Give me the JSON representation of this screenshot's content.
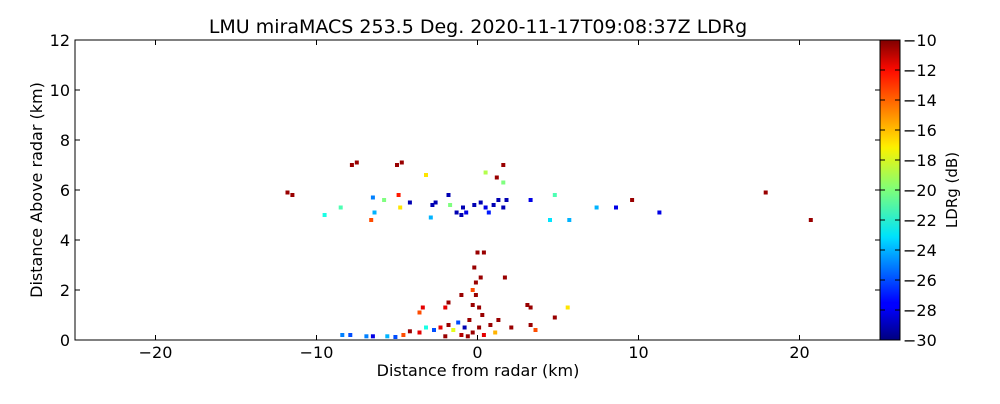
{
  "chart_data": {
    "type": "heatmap",
    "title": "LMU miraMACS 253.5 Deg. 2020-11-17T09:08:37Z  LDRg",
    "xlabel": "Distance from radar (km)",
    "ylabel": "Distance Above radar  (km)",
    "xlim": [
      -25,
      25
    ],
    "ylim": [
      0,
      12
    ],
    "x_ticks": [
      -20,
      -10,
      0,
      10,
      20
    ],
    "x_tick_labels": [
      "−20",
      "−10",
      "0",
      "10",
      "20"
    ],
    "y_ticks": [
      0,
      2,
      4,
      6,
      8,
      10,
      12
    ],
    "y_tick_labels": [
      "0",
      "2",
      "4",
      "6",
      "8",
      "10",
      "12"
    ],
    "colorbar": {
      "label": "LDRg (dB)",
      "colormap": "jet",
      "range": [
        -30,
        -10
      ],
      "ticks": [
        -30,
        -28,
        -26,
        -24,
        -22,
        -20,
        -18,
        -16,
        -14,
        -12,
        -10
      ],
      "tick_labels": [
        "−30",
        "−28",
        "−26",
        "−24",
        "−22",
        "−20",
        "−18",
        "−16",
        "−14",
        "−12",
        "−10"
      ]
    },
    "grid": false,
    "features": [
      {
        "x": -11.8,
        "y": 5.9,
        "v": -10.5
      },
      {
        "x": -11.5,
        "y": 5.8,
        "v": -10.5
      },
      {
        "x": -9.5,
        "y": 5.0,
        "v": -22
      },
      {
        "x": -8.5,
        "y": 5.3,
        "v": -21
      },
      {
        "x": -7.8,
        "y": 7.0,
        "v": -10.5
      },
      {
        "x": -7.5,
        "y": 7.1,
        "v": -10.5
      },
      {
        "x": -6.5,
        "y": 5.7,
        "v": -25
      },
      {
        "x": -6.4,
        "y": 5.1,
        "v": -24
      },
      {
        "x": -6.6,
        "y": 4.8,
        "v": -14
      },
      {
        "x": -5.8,
        "y": 5.6,
        "v": -20
      },
      {
        "x": -5.0,
        "y": 7.0,
        "v": -10.5
      },
      {
        "x": -4.7,
        "y": 7.1,
        "v": -10.5
      },
      {
        "x": -4.9,
        "y": 5.8,
        "v": -13
      },
      {
        "x": -4.8,
        "y": 5.3,
        "v": -17
      },
      {
        "x": -4.2,
        "y": 5.5,
        "v": -29
      },
      {
        "x": -3.2,
        "y": 6.6,
        "v": -17
      },
      {
        "x": -2.8,
        "y": 5.4,
        "v": -29
      },
      {
        "x": -2.6,
        "y": 5.5,
        "v": -29
      },
      {
        "x": -2.9,
        "y": 4.9,
        "v": -24
      },
      {
        "x": -1.8,
        "y": 5.8,
        "v": -29
      },
      {
        "x": -1.7,
        "y": 5.4,
        "v": -20
      },
      {
        "x": -1.3,
        "y": 5.1,
        "v": -29
      },
      {
        "x": -1.0,
        "y": 5.0,
        "v": -29
      },
      {
        "x": -0.7,
        "y": 5.1,
        "v": -28
      },
      {
        "x": -0.9,
        "y": 5.3,
        "v": -29
      },
      {
        "x": -0.2,
        "y": 5.4,
        "v": -29
      },
      {
        "x": 0.2,
        "y": 5.5,
        "v": -29
      },
      {
        "x": 0.5,
        "y": 5.3,
        "v": -28
      },
      {
        "x": 1.0,
        "y": 5.4,
        "v": -29
      },
      {
        "x": 1.3,
        "y": 5.6,
        "v": -29
      },
      {
        "x": 1.8,
        "y": 5.6,
        "v": -29
      },
      {
        "x": 1.6,
        "y": 5.3,
        "v": -29
      },
      {
        "x": 0.7,
        "y": 5.1,
        "v": -27
      },
      {
        "x": 0.5,
        "y": 6.7,
        "v": -19
      },
      {
        "x": 1.2,
        "y": 6.5,
        "v": -10.5
      },
      {
        "x": 1.6,
        "y": 7.0,
        "v": -10.5
      },
      {
        "x": 1.6,
        "y": 6.3,
        "v": -20
      },
      {
        "x": 3.3,
        "y": 5.6,
        "v": -28
      },
      {
        "x": 4.5,
        "y": 4.8,
        "v": -23
      },
      {
        "x": 4.8,
        "y": 5.8,
        "v": -21
      },
      {
        "x": 5.7,
        "y": 4.8,
        "v": -24
      },
      {
        "x": 7.4,
        "y": 5.3,
        "v": -24
      },
      {
        "x": 8.6,
        "y": 5.3,
        "v": -28
      },
      {
        "x": 9.6,
        "y": 5.6,
        "v": -10.5
      },
      {
        "x": 11.3,
        "y": 5.1,
        "v": -28
      },
      {
        "x": 17.9,
        "y": 5.9,
        "v": -10.5
      },
      {
        "x": 20.7,
        "y": 4.8,
        "v": -10.5
      },
      {
        "x": 0.0,
        "y": 3.5,
        "v": -10.5
      },
      {
        "x": 0.4,
        "y": 3.5,
        "v": -10.5
      },
      {
        "x": -0.2,
        "y": 2.9,
        "v": -10.5
      },
      {
        "x": -0.1,
        "y": 2.3,
        "v": -10.5
      },
      {
        "x": 0.2,
        "y": 2.5,
        "v": -10.5
      },
      {
        "x": 1.7,
        "y": 2.5,
        "v": -10.5
      },
      {
        "x": -0.3,
        "y": 2.0,
        "v": -14
      },
      {
        "x": -0.1,
        "y": 1.8,
        "v": -10.5
      },
      {
        "x": -1.0,
        "y": 1.8,
        "v": -10.5
      },
      {
        "x": -1.8,
        "y": 1.5,
        "v": -10.5
      },
      {
        "x": -2.0,
        "y": 1.3,
        "v": -12
      },
      {
        "x": -3.4,
        "y": 1.3,
        "v": -12
      },
      {
        "x": -3.6,
        "y": 1.1,
        "v": -14
      },
      {
        "x": -0.3,
        "y": 1.4,
        "v": -10.5
      },
      {
        "x": 0.1,
        "y": 1.3,
        "v": -10.5
      },
      {
        "x": 0.3,
        "y": 1.0,
        "v": -10.5
      },
      {
        "x": 1.3,
        "y": 0.8,
        "v": -10.5
      },
      {
        "x": 3.1,
        "y": 1.4,
        "v": -10.5
      },
      {
        "x": 3.3,
        "y": 1.3,
        "v": -10.5
      },
      {
        "x": 5.6,
        "y": 1.3,
        "v": -17
      },
      {
        "x": 3.3,
        "y": 0.6,
        "v": -10.5
      },
      {
        "x": 4.8,
        "y": 0.9,
        "v": -10.5
      },
      {
        "x": 2.1,
        "y": 0.5,
        "v": -10.5
      },
      {
        "x": 3.6,
        "y": 0.4,
        "v": -14
      },
      {
        "x": -8.4,
        "y": 0.2,
        "v": -25
      },
      {
        "x": -7.9,
        "y": 0.2,
        "v": -26
      },
      {
        "x": -6.9,
        "y": 0.15,
        "v": -25
      },
      {
        "x": -6.5,
        "y": 0.15,
        "v": -28
      },
      {
        "x": -5.6,
        "y": 0.15,
        "v": -24
      },
      {
        "x": -5.1,
        "y": 0.12,
        "v": -26
      },
      {
        "x": -4.6,
        "y": 0.2,
        "v": -14
      },
      {
        "x": -4.2,
        "y": 0.35,
        "v": -10.5
      },
      {
        "x": -3.6,
        "y": 0.3,
        "v": -12
      },
      {
        "x": -3.2,
        "y": 0.5,
        "v": -22
      },
      {
        "x": -2.7,
        "y": 0.4,
        "v": -26
      },
      {
        "x": -2.3,
        "y": 0.5,
        "v": -12
      },
      {
        "x": -1.8,
        "y": 0.6,
        "v": -10.5
      },
      {
        "x": -1.5,
        "y": 0.4,
        "v": -18
      },
      {
        "x": -1.2,
        "y": 0.7,
        "v": -26
      },
      {
        "x": -0.8,
        "y": 0.5,
        "v": -29
      },
      {
        "x": -0.5,
        "y": 0.8,
        "v": -10.5
      },
      {
        "x": -0.3,
        "y": 0.3,
        "v": -10.5
      },
      {
        "x": 0.1,
        "y": 0.5,
        "v": -10.5
      },
      {
        "x": 0.4,
        "y": 0.2,
        "v": -12
      },
      {
        "x": 0.8,
        "y": 0.6,
        "v": -10.5
      },
      {
        "x": 1.1,
        "y": 0.3,
        "v": -16
      },
      {
        "x": -0.6,
        "y": 0.15,
        "v": -10.5
      },
      {
        "x": -1.0,
        "y": 0.2,
        "v": -11
      },
      {
        "x": -2.0,
        "y": 0.15,
        "v": -10.5
      }
    ]
  }
}
